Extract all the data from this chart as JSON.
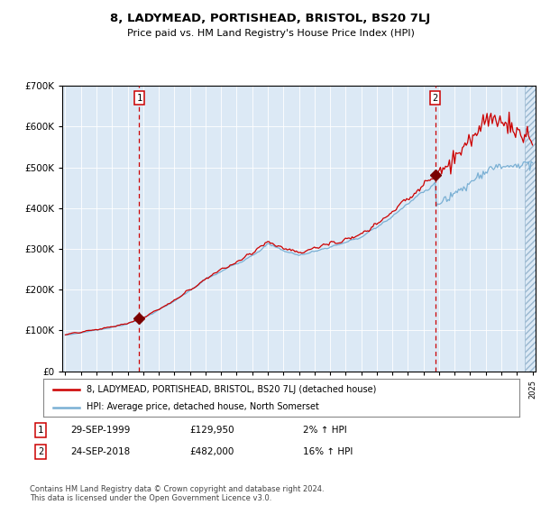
{
  "title": "8, LADYMEAD, PORTISHEAD, BRISTOL, BS20 7LJ",
  "subtitle": "Price paid vs. HM Land Registry's House Price Index (HPI)",
  "background_color": "#dce9f5",
  "x_start_year": 1995,
  "x_end_year": 2025,
  "y_min": 0,
  "y_max": 700000,
  "sale1_date": 1999.75,
  "sale1_price": 129950,
  "sale1_label": "1",
  "sale1_date_str": "29-SEP-1999",
  "sale1_pct": "2%",
  "sale2_date": 2018.75,
  "sale2_price": 482000,
  "sale2_label": "2",
  "sale2_date_str": "24-SEP-2018",
  "sale2_pct": "16%",
  "red_line_color": "#cc0000",
  "blue_line_color": "#7ab0d4",
  "dashed_line_color": "#cc0000",
  "marker_color": "#7a0000",
  "legend_label_red": "8, LADYMEAD, PORTISHEAD, BRISTOL, BS20 7LJ (detached house)",
  "legend_label_blue": "HPI: Average price, detached house, North Somerset",
  "footnote": "Contains HM Land Registry data © Crown copyright and database right 2024.\nThis data is licensed under the Open Government Licence v3.0."
}
